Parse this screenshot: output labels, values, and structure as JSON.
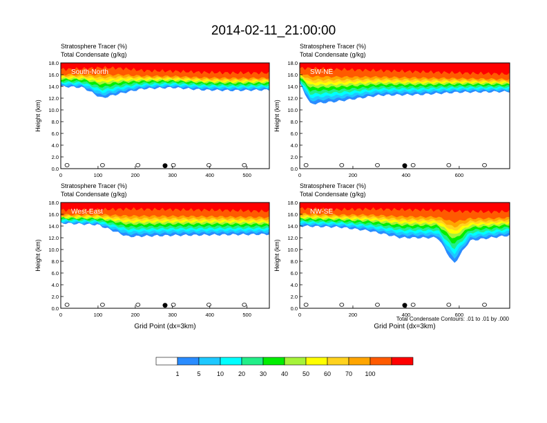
{
  "figure": {
    "title": "2014-02-11_21:00:00",
    "contour_note": "Total Condensate Contours: .01 to .01 by .000",
    "cross_sections": [
      "South-North",
      "SW-NE",
      "West-East",
      "NW-SE"
    ]
  },
  "chart_data": [
    {
      "type": "heatmap",
      "label": "South-North",
      "title": "Stratosphere Tracer   (%)",
      "subtitle": "Total Condensate   (g/kg)",
      "xlabel": "",
      "ylabel": "Height (km)",
      "xlim": [
        0,
        560
      ],
      "ylim": [
        0,
        18
      ],
      "xticks": [
        0,
        100,
        200,
        300,
        400,
        500
      ],
      "yticks": [
        "0.0",
        "2.0",
        "4.0",
        "6.0",
        "8.0",
        "10.0",
        "12.0",
        "14.0",
        "16.0",
        "18.0"
      ],
      "marker_x": 280,
      "band": [
        [
          0,
          14.0,
          16.4
        ],
        [
          60,
          13.8,
          16.5
        ],
        [
          110,
          12.0,
          16.7
        ],
        [
          160,
          12.8,
          16.6
        ],
        [
          220,
          13.6,
          16.2
        ],
        [
          300,
          13.8,
          16.1
        ],
        [
          380,
          13.4,
          15.9
        ],
        [
          460,
          13.3,
          15.8
        ],
        [
          560,
          13.4,
          15.8
        ]
      ]
    },
    {
      "type": "heatmap",
      "label": "SW-NE",
      "title": "Stratosphere Tracer   (%)",
      "subtitle": "Total Condensate   (g/kg)",
      "xlabel": "",
      "ylabel": "Height (km)",
      "xlim": [
        0,
        790
      ],
      "ylim": [
        0,
        18
      ],
      "xticks": [
        0,
        200,
        400,
        600
      ],
      "yticks": [
        "0.0",
        "2.0",
        "4.0",
        "6.0",
        "8.0",
        "10.0",
        "12.0",
        "14.0",
        "16.0",
        "18.0"
      ],
      "marker_x": 395,
      "band": [
        [
          0,
          14.5,
          16.6
        ],
        [
          40,
          11.0,
          16.6
        ],
        [
          150,
          11.5,
          16.4
        ],
        [
          300,
          12.5,
          16.2
        ],
        [
          450,
          12.6,
          16.0
        ],
        [
          600,
          13.0,
          15.8
        ],
        [
          790,
          13.1,
          15.6
        ]
      ]
    },
    {
      "type": "heatmap",
      "label": "West-East",
      "title": "Stratosphere Tracer   (%)",
      "subtitle": "Total Condensate   (g/kg)",
      "xlabel": "Grid Point (dx=3km)",
      "ylabel": "Height (km)",
      "xlim": [
        0,
        560
      ],
      "ylim": [
        0,
        18
      ],
      "xticks": [
        0,
        100,
        200,
        300,
        400,
        500
      ],
      "yticks": [
        "0.0",
        "2.0",
        "4.0",
        "6.0",
        "8.0",
        "10.0",
        "12.0",
        "14.0",
        "16.0",
        "18.0"
      ],
      "marker_x": 280,
      "band": [
        [
          0,
          14.5,
          16.2
        ],
        [
          100,
          14.2,
          16.3
        ],
        [
          180,
          12.2,
          16.4
        ],
        [
          300,
          12.4,
          16.3
        ],
        [
          420,
          12.5,
          16.2
        ],
        [
          560,
          12.6,
          16.0
        ]
      ]
    },
    {
      "type": "heatmap",
      "label": "NW-SE",
      "title": "Stratosphere Tracer   (%)",
      "subtitle": "Total Condensate   (g/kg)",
      "xlabel": "Grid Point (dx=3km)",
      "ylabel": "Height (km)",
      "xlim": [
        0,
        790
      ],
      "ylim": [
        0,
        18
      ],
      "xticks": [
        0,
        200,
        400,
        600
      ],
      "yticks": [
        "0.0",
        "2.0",
        "4.0",
        "6.0",
        "8.0",
        "10.0",
        "12.0",
        "14.0",
        "16.0",
        "18.0"
      ],
      "marker_x": 395,
      "band": [
        [
          0,
          14.0,
          16.5
        ],
        [
          150,
          13.8,
          16.3
        ],
        [
          260,
          13.2,
          16.4
        ],
        [
          380,
          12.0,
          16.3
        ],
        [
          520,
          12.0,
          16.2
        ],
        [
          580,
          7.5,
          16.0
        ],
        [
          640,
          11.5,
          16.0
        ],
        [
          720,
          12.0,
          15.9
        ],
        [
          790,
          12.4,
          16.0
        ]
      ]
    }
  ],
  "colorbar": {
    "labels": [
      "1",
      "5",
      "10",
      "20",
      "30",
      "40",
      "50",
      "60",
      "70",
      "100"
    ],
    "colors": [
      "#ffffff",
      "#2a8cff",
      "#1ec8ff",
      "#00ffff",
      "#22ee88",
      "#00ee00",
      "#a6f33a",
      "#ffff00",
      "#ffd21e",
      "#ffa500",
      "#ff5a00",
      "#ff0000"
    ]
  }
}
